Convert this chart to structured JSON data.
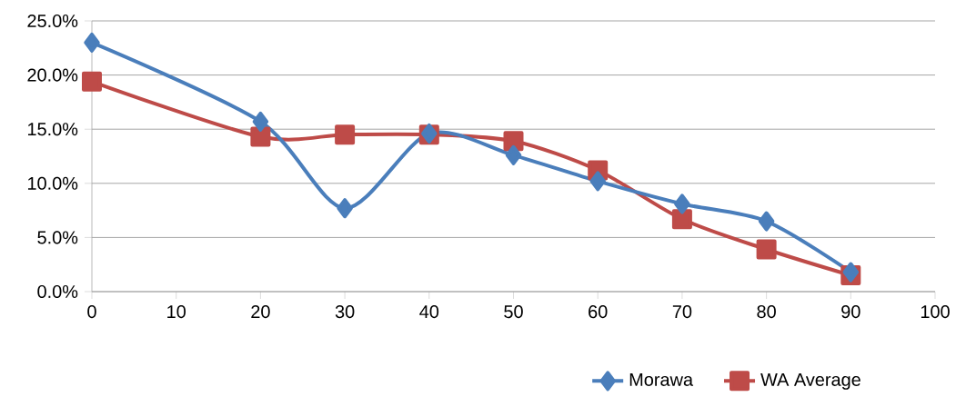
{
  "chart_data": {
    "type": "line",
    "x": [
      0,
      20,
      30,
      40,
      50,
      60,
      70,
      80,
      90
    ],
    "series": [
      {
        "name": "Morawa",
        "color": "#4a7ebb",
        "marker": "diamond",
        "values": [
          23.0,
          15.7,
          7.7,
          14.6,
          12.6,
          10.2,
          8.1,
          6.5,
          1.8
        ]
      },
      {
        "name": "WA Average",
        "color": "#be4b48",
        "marker": "square",
        "values": [
          19.4,
          14.3,
          14.5,
          14.5,
          13.9,
          11.2,
          6.7,
          3.9,
          1.5
        ]
      }
    ],
    "xlim": [
      0,
      100
    ],
    "xticks": [
      0,
      10,
      20,
      30,
      40,
      50,
      60,
      70,
      80,
      90,
      100
    ],
    "ylim": [
      0,
      25
    ],
    "yticks": [
      {
        "value": 0,
        "label": "0.0%"
      },
      {
        "value": 5,
        "label": "5.0%"
      },
      {
        "value": 10,
        "label": "10.0%"
      },
      {
        "value": 15,
        "label": "15.0%"
      },
      {
        "value": 20,
        "label": "20.0%"
      },
      {
        "value": 25,
        "label": "25.0%"
      }
    ],
    "grid": "y",
    "legend": "bottom",
    "line_style": "solid"
  }
}
